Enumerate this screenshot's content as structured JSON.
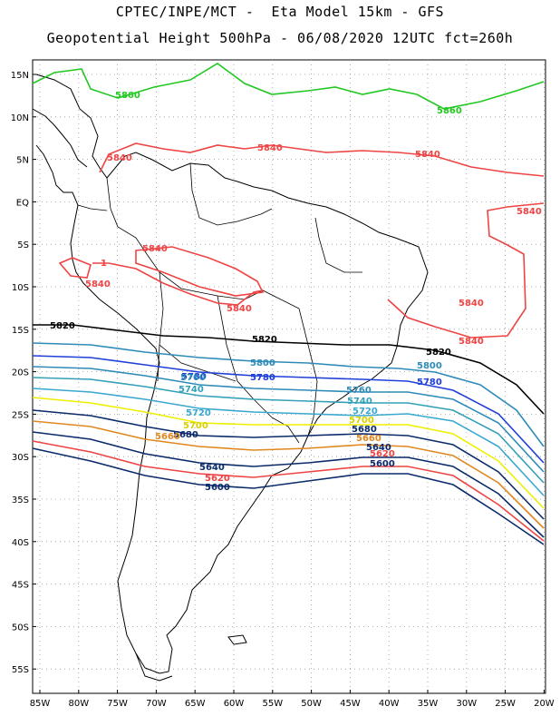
{
  "header": {
    "line1": "CPTEC/INPE/MCT -  Eta Model 15km - GFS",
    "line2": "Geopotential Height 500hPa - 06/08/2020 12UTC fct=260h"
  },
  "axes": {
    "lat_ticks": [
      "15N",
      "10N",
      "5N",
      "EQ",
      "5S",
      "10S",
      "15S",
      "20S",
      "25S",
      "30S",
      "35S",
      "40S",
      "45S",
      "50S",
      "55S"
    ],
    "lon_ticks": [
      "85W",
      "80W",
      "75W",
      "70W",
      "65W",
      "60W",
      "55W",
      "50W",
      "45W",
      "40W",
      "35W",
      "30W",
      "25W",
      "20W"
    ]
  },
  "colors": {
    "c5860": "#22c822",
    "c5840": "#ee4444",
    "c5820": "#000000",
    "c5800": "#2e8bb8",
    "c5780": "#1f3fd8",
    "c5760": "#2e8bb8",
    "c5740": "#33a0b8",
    "c5720": "#3aa8d0",
    "c5700": "#eeee00",
    "c5680": "#e0a020",
    "c5660": "#e08820",
    "c5640": "#0a2a6a",
    "c5620": "#ee4444",
    "c5600": "#0a2a6a"
  },
  "contour_labels": [
    {
      "text": "5860",
      "color": "#22c822"
    },
    {
      "text": "5860",
      "color": "#22c822"
    },
    {
      "text": "5840",
      "color": "#ee4444"
    },
    {
      "text": "5840",
      "color": "#ee4444"
    },
    {
      "text": "5840",
      "color": "#ee4444"
    },
    {
      "text": "5840",
      "color": "#ee4444"
    },
    {
      "text": "5840",
      "color": "#ee4444"
    },
    {
      "text": "5840",
      "color": "#ee4444"
    },
    {
      "text": "5840",
      "color": "#ee4444"
    },
    {
      "text": "5840",
      "color": "#ee4444"
    },
    {
      "text": "5840",
      "color": "#ee4444"
    },
    {
      "text": "5820",
      "color": "#000000"
    },
    {
      "text": "5820",
      "color": "#000000"
    },
    {
      "text": "5820",
      "color": "#000000"
    },
    {
      "text": "5800",
      "color": "#2e8bb8"
    },
    {
      "text": "5800",
      "color": "#2e8bb8"
    },
    {
      "text": "5780",
      "color": "#1f3fd8"
    },
    {
      "text": "5780",
      "color": "#1f3fd8"
    },
    {
      "text": "5780",
      "color": "#1f3fd8"
    },
    {
      "text": "5760",
      "color": "#2e8bb8"
    },
    {
      "text": "5760",
      "color": "#2e8bb8"
    },
    {
      "text": "5740",
      "color": "#33a0b8"
    },
    {
      "text": "5740",
      "color": "#33a0b8"
    },
    {
      "text": "5720",
      "color": "#3aa8d0"
    },
    {
      "text": "5720",
      "color": "#3aa8d0"
    },
    {
      "text": "5700",
      "color": "#d8d000"
    },
    {
      "text": "5700",
      "color": "#d8d000"
    },
    {
      "text": "5680",
      "color": "#0a2a6a"
    },
    {
      "text": "5680",
      "color": "#0a2a6a"
    },
    {
      "text": "5660",
      "color": "#e08820"
    },
    {
      "text": "5660",
      "color": "#e08820"
    },
    {
      "text": "5640",
      "color": "#0a2a6a"
    },
    {
      "text": "5640",
      "color": "#0a2a6a"
    },
    {
      "text": "5620",
      "color": "#ee4444"
    },
    {
      "text": "5620",
      "color": "#ee4444"
    },
    {
      "text": "5600",
      "color": "#0a2a6a"
    },
    {
      "text": "5600",
      "color": "#0a2a6a"
    },
    {
      "text": "1",
      "color": "#ee4444"
    }
  ]
}
